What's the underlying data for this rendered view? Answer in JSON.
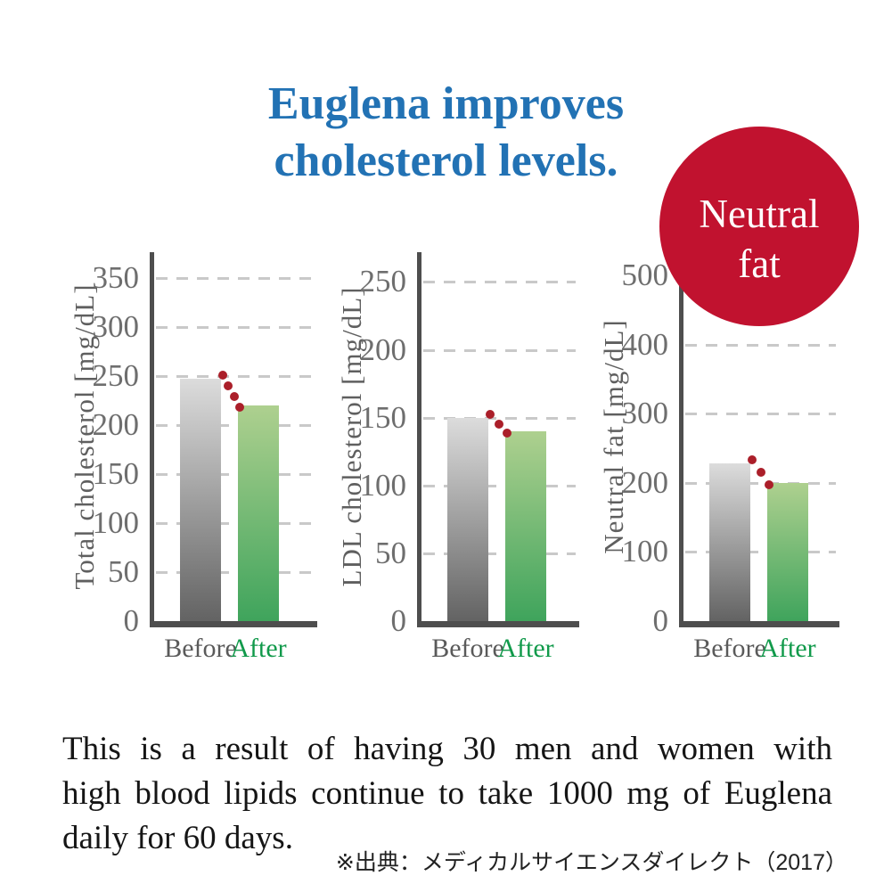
{
  "title": {
    "lines": [
      "Euglena improves",
      "cholesterol levels."
    ]
  },
  "badge": {
    "lines": [
      "Neutral",
      "fat"
    ]
  },
  "chart_data": [
    {
      "type": "bar",
      "title": "",
      "xlabel": "",
      "ylabel": "Total cholesterol [mg/dL]",
      "categories": [
        "Before",
        "After"
      ],
      "values": [
        247,
        220
      ],
      "yticks": [
        0,
        50,
        100,
        150,
        200,
        250,
        300,
        350
      ],
      "ylim": [
        0,
        376
      ],
      "grid": "dashed-horizontal",
      "legend": "none",
      "connector_dots": 4
    },
    {
      "type": "bar",
      "title": "",
      "xlabel": "",
      "ylabel": "LDL cholesterol [mg/dL]",
      "categories": [
        "Before",
        "After"
      ],
      "values": [
        150,
        140
      ],
      "yticks": [
        0,
        50,
        100,
        150,
        200,
        250
      ],
      "ylim": [
        0,
        272
      ],
      "grid": "dashed-horizontal",
      "legend": "none",
      "connector_dots": 3
    },
    {
      "type": "bar",
      "title": "",
      "xlabel": "",
      "ylabel": "Neutral fat [mg/dL]",
      "categories": [
        "Before",
        "After"
      ],
      "values": [
        228,
        200
      ],
      "yticks": [
        0,
        100,
        200,
        300,
        400,
        500
      ],
      "ylim": [
        0,
        534
      ],
      "grid": "dashed-horizontal",
      "legend": "none",
      "connector_dots": 3
    }
  ],
  "colors": {
    "title": "#2272b4",
    "badge_bg": "#c1122f",
    "before_bar_top": "#dcdcdc",
    "before_bar_bottom": "#636363",
    "after_bar_top": "#aed08f",
    "after_bar_bottom": "#3fa45c",
    "before_label": "#5a5a5a",
    "after_label": "#119a4b",
    "axis": "#4e4e4e",
    "gridline": "#c9c9c9",
    "tick_label": "#6e6e6e",
    "trend_dot": "#ab1f2a"
  },
  "body_text": {
    "lines": [
      "This is a result of having 30 men and women with",
      "high blood lipids continue to take 1000 mg of Euglena",
      "daily for 60 days."
    ]
  },
  "footer": {
    "source": "※出典：メディカルサイエンスダイレクト（2017）"
  }
}
